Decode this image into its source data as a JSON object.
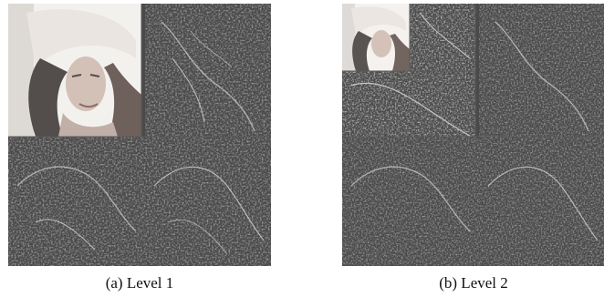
{
  "figures": [
    {
      "caption": "(a) Level 1",
      "decomposition_level": 1
    },
    {
      "caption": "(b) Level 2",
      "decomposition_level": 2
    }
  ],
  "colors": {
    "subband_background": "#4a4a4a",
    "approximation_light": "#f2efec",
    "approximation_dark": "#3c3634",
    "edge_detail": "#cfcfcf",
    "page_background": "#ffffff"
  }
}
